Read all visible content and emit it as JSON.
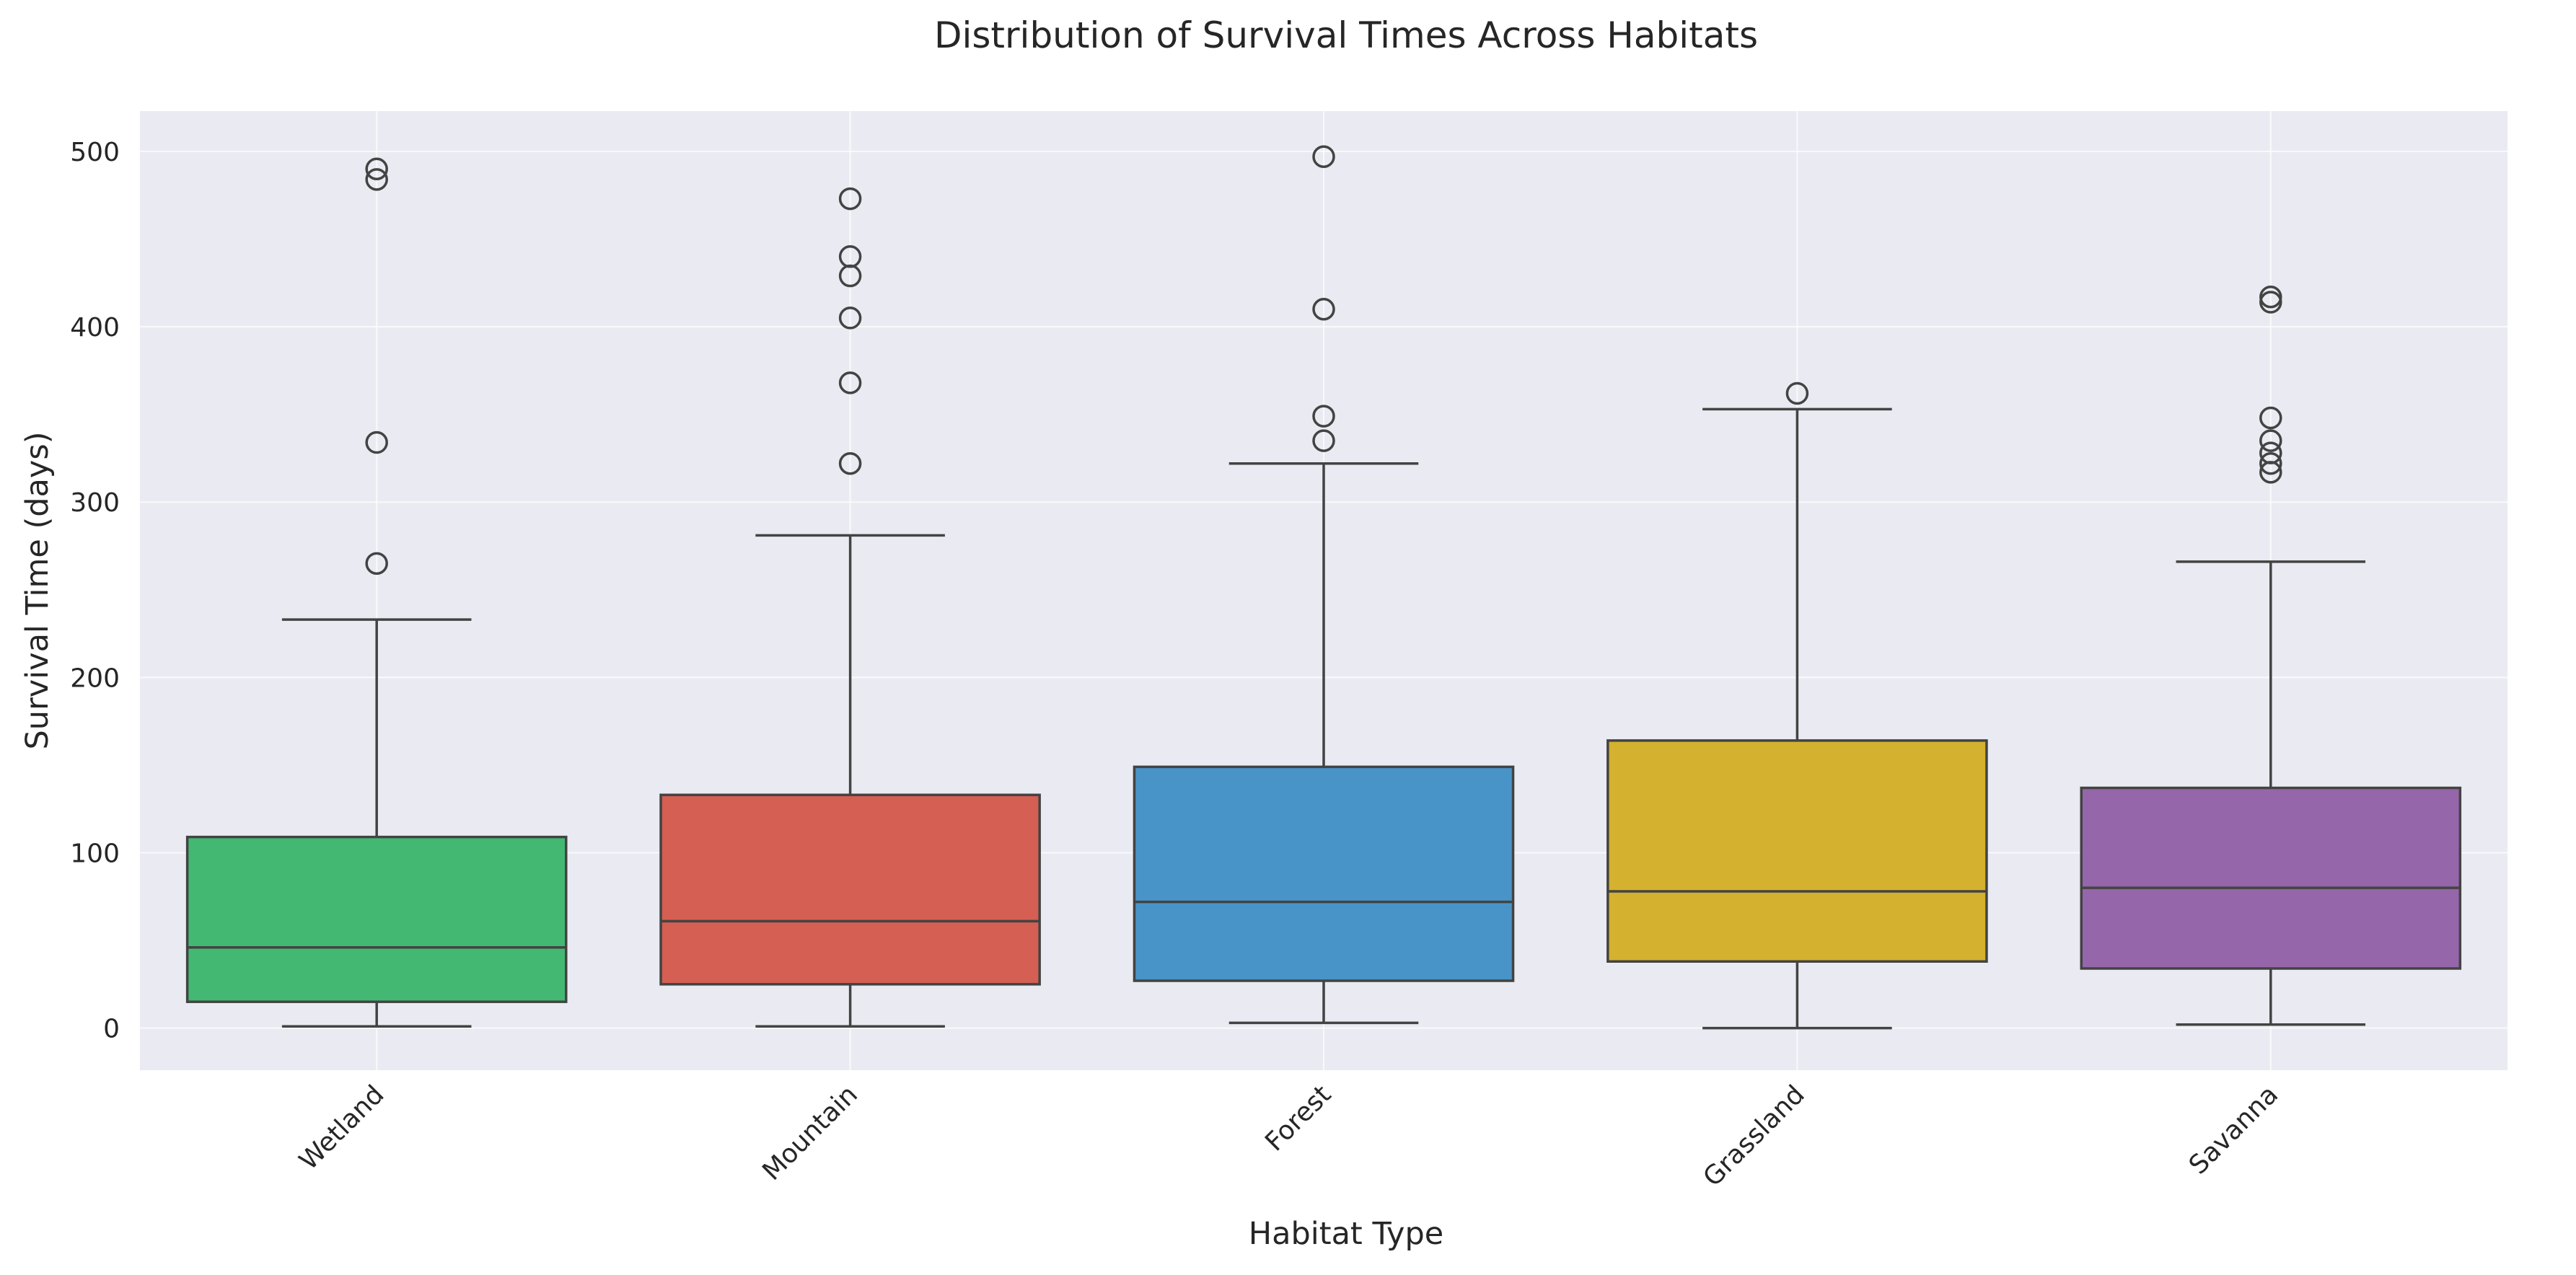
{
  "chart_data": {
    "type": "box",
    "title": "Distribution of Survival Times Across Habitats",
    "xlabel": "Habitat Type",
    "ylabel": "Survival Time (days)",
    "ylim": [
      -24,
      523
    ],
    "yticks": [
      0,
      100,
      200,
      300,
      400,
      500
    ],
    "grid": true,
    "legend": "none",
    "categories": [
      "Wetland",
      "Mountain",
      "Forest",
      "Grassland",
      "Savanna"
    ],
    "boxes": [
      {
        "category": "Wetland",
        "color": "#43b872",
        "whisker_low": 1,
        "q1": 15,
        "median": 46,
        "q3": 109,
        "whisker_high": 233,
        "outliers": [
          265,
          334,
          484,
          490
        ]
      },
      {
        "category": "Mountain",
        "color": "#d45f52",
        "whisker_low": 1,
        "q1": 25,
        "median": 61,
        "q3": 133,
        "whisker_high": 281,
        "outliers": [
          322,
          368,
          405,
          429,
          440,
          473
        ]
      },
      {
        "category": "Forest",
        "color": "#4894c8",
        "whisker_low": 3,
        "q1": 27,
        "median": 72,
        "q3": 149,
        "whisker_high": 322,
        "outliers": [
          335,
          349,
          410,
          497
        ]
      },
      {
        "category": "Grassland",
        "color": "#d4b12e",
        "whisker_low": 0,
        "q1": 38,
        "median": 78,
        "q3": 164,
        "whisker_high": 353,
        "outliers": [
          362
        ]
      },
      {
        "category": "Savanna",
        "color": "#9566a9",
        "whisker_low": 2,
        "q1": 34,
        "median": 80,
        "q3": 137,
        "whisker_high": 266,
        "outliers": [
          317,
          322,
          328,
          335,
          348,
          414,
          417
        ]
      }
    ]
  }
}
